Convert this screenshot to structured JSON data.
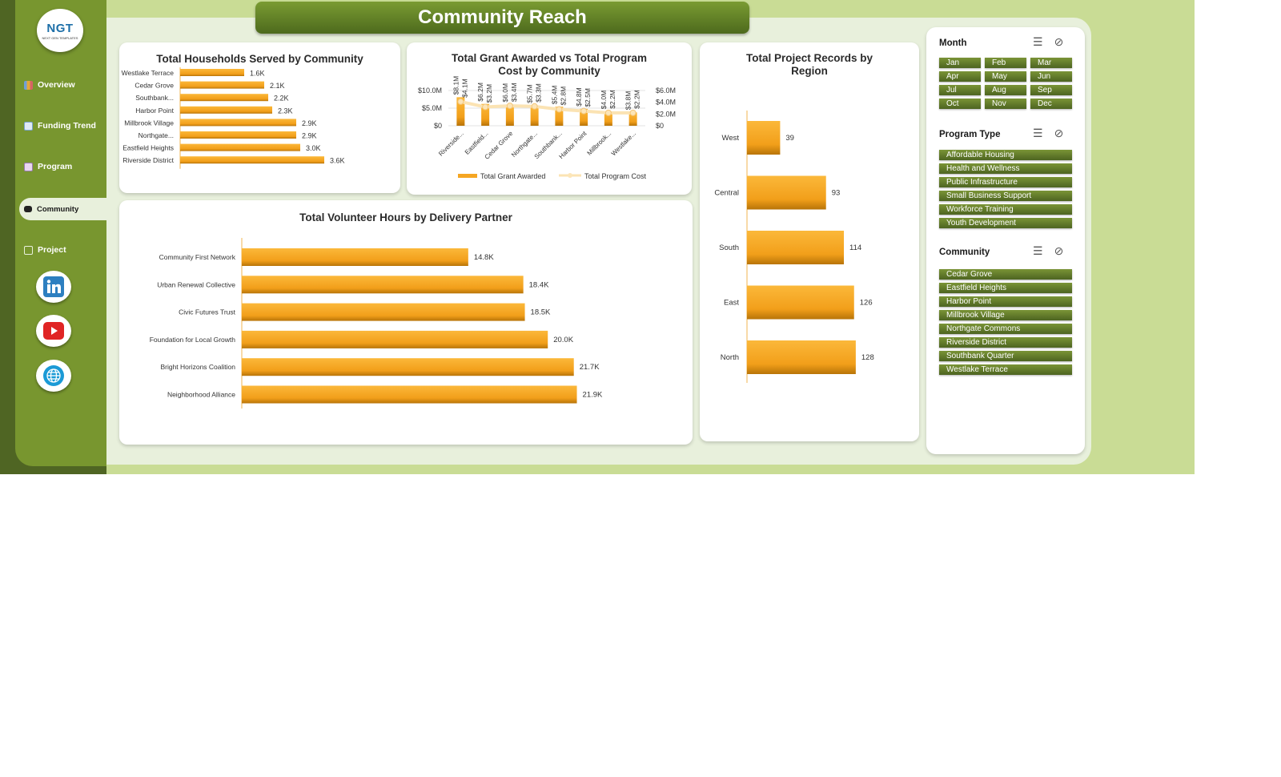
{
  "app": {
    "title": "Community Reach",
    "logo_text": "NGT",
    "logo_subtext": "NEXT GEN TEMPLATES"
  },
  "sidebar": {
    "items": [
      {
        "label": "Overview",
        "icon": "overview-chart-icon",
        "active": false
      },
      {
        "label": "Funding Trend",
        "icon": "line-chart-icon",
        "active": false
      },
      {
        "label": "Program",
        "icon": "notepad-icon",
        "active": false
      },
      {
        "label": "Community",
        "icon": "folder-icon",
        "active": true
      },
      {
        "label": "Project",
        "icon": "document-icon",
        "active": false
      }
    ],
    "social": [
      {
        "name": "linkedin-icon",
        "color": "#2d7fc0"
      },
      {
        "name": "youtube-icon",
        "color": "#e02424"
      },
      {
        "name": "globe-icon",
        "color": "#1b9ad6"
      }
    ]
  },
  "colors": {
    "bar": "#f5a623",
    "bar_dark": "#d98a0a",
    "line": "#fbe3b3",
    "accent": "#5a7a23"
  },
  "chart_data": [
    {
      "id": "households",
      "type": "bar",
      "title": "Total Households Served by Community",
      "categories": [
        "Westlake Terrace",
        "Cedar Grove",
        "Southbank...",
        "Harbor Point",
        "Millbrook Village",
        "Northgate...",
        "Eastfield Heights",
        "Riverside District"
      ],
      "values": [
        1.6,
        2.1,
        2.2,
        2.3,
        2.9,
        2.9,
        3.0,
        3.6
      ],
      "data_labels": [
        "1.6K",
        "2.1K",
        "2.2K",
        "2.3K",
        "2.9K",
        "2.9K",
        "3.0K",
        "3.6K"
      ],
      "unit": "K"
    },
    {
      "id": "grant_cost",
      "type": "bar",
      "title": "Total Grant Awarded vs Total Program Cost by Community",
      "categories": [
        "Riverside...",
        "Eastfield...",
        "Cedar Grove",
        "Northgate...",
        "Southbank...",
        "Harbor Point",
        "Millbrook...",
        "Westlake..."
      ],
      "y_left_ticks": [
        "$10.0M",
        "$5.0M",
        "$0"
      ],
      "y_right_ticks": [
        "$6.0M",
        "$4.0M",
        "$2.0M",
        "$0"
      ],
      "ylim_left": [
        0,
        10
      ],
      "ylim_right": [
        0,
        6
      ],
      "series": [
        {
          "name": "Total Grant Awarded",
          "values": [
            8.1,
            6.2,
            6.0,
            5.7,
            5.4,
            4.8,
            4.0,
            3.8
          ],
          "labels": [
            "$8.1M",
            "$6.2M",
            "$6.0M",
            "$5.7M",
            "$5.4M",
            "$4.8M",
            "$4.0M",
            "$3.8M"
          ]
        },
        {
          "name": "Total Program Cost",
          "values": [
            4.1,
            3.2,
            3.4,
            3.3,
            2.8,
            2.5,
            2.2,
            2.2
          ],
          "labels": [
            "$4.1M",
            "$3.2M",
            "$3.4M",
            "$3.3M",
            "$2.8M",
            "$2.5M",
            "$2.2M",
            "$2.2M"
          ]
        }
      ]
    },
    {
      "id": "region",
      "type": "bar",
      "title": "Total Project Records by Region",
      "categories": [
        "West",
        "Central",
        "South",
        "East",
        "North"
      ],
      "values": [
        39,
        93,
        114,
        126,
        128
      ]
    },
    {
      "id": "volunteer",
      "type": "bar",
      "title": "Total Volunteer Hours by Delivery Partner",
      "categories": [
        "Community First Network",
        "Urban Renewal Collective",
        "Civic Futures Trust",
        "Foundation for Local Growth",
        "Bright Horizons Coalition",
        "Neighborhood Alliance"
      ],
      "values": [
        14.8,
        18.4,
        18.5,
        20.0,
        21.7,
        21.9
      ],
      "data_labels": [
        "14.8K",
        "18.4K",
        "18.5K",
        "20.0K",
        "21.7K",
        "21.9K"
      ],
      "unit": "K"
    }
  ],
  "slicers": [
    {
      "title": "Month",
      "columns": 3,
      "items": [
        "Jan",
        "Feb",
        "Mar",
        "Apr",
        "May",
        "Jun",
        "Jul",
        "Aug",
        "Sep",
        "Oct",
        "Nov",
        "Dec"
      ]
    },
    {
      "title": "Program Type",
      "columns": 1,
      "items": [
        "Affordable Housing",
        "Health and Wellness",
        "Public Infrastructure",
        "Small Business Support",
        "Workforce Training",
        "Youth Development"
      ]
    },
    {
      "title": "Community",
      "columns": 1,
      "items": [
        "Cedar Grove",
        "Eastfield Heights",
        "Harbor Point",
        "Millbrook Village",
        "Northgate Commons",
        "Riverside District",
        "Southbank Quarter",
        "Westlake Terrace"
      ]
    }
  ]
}
